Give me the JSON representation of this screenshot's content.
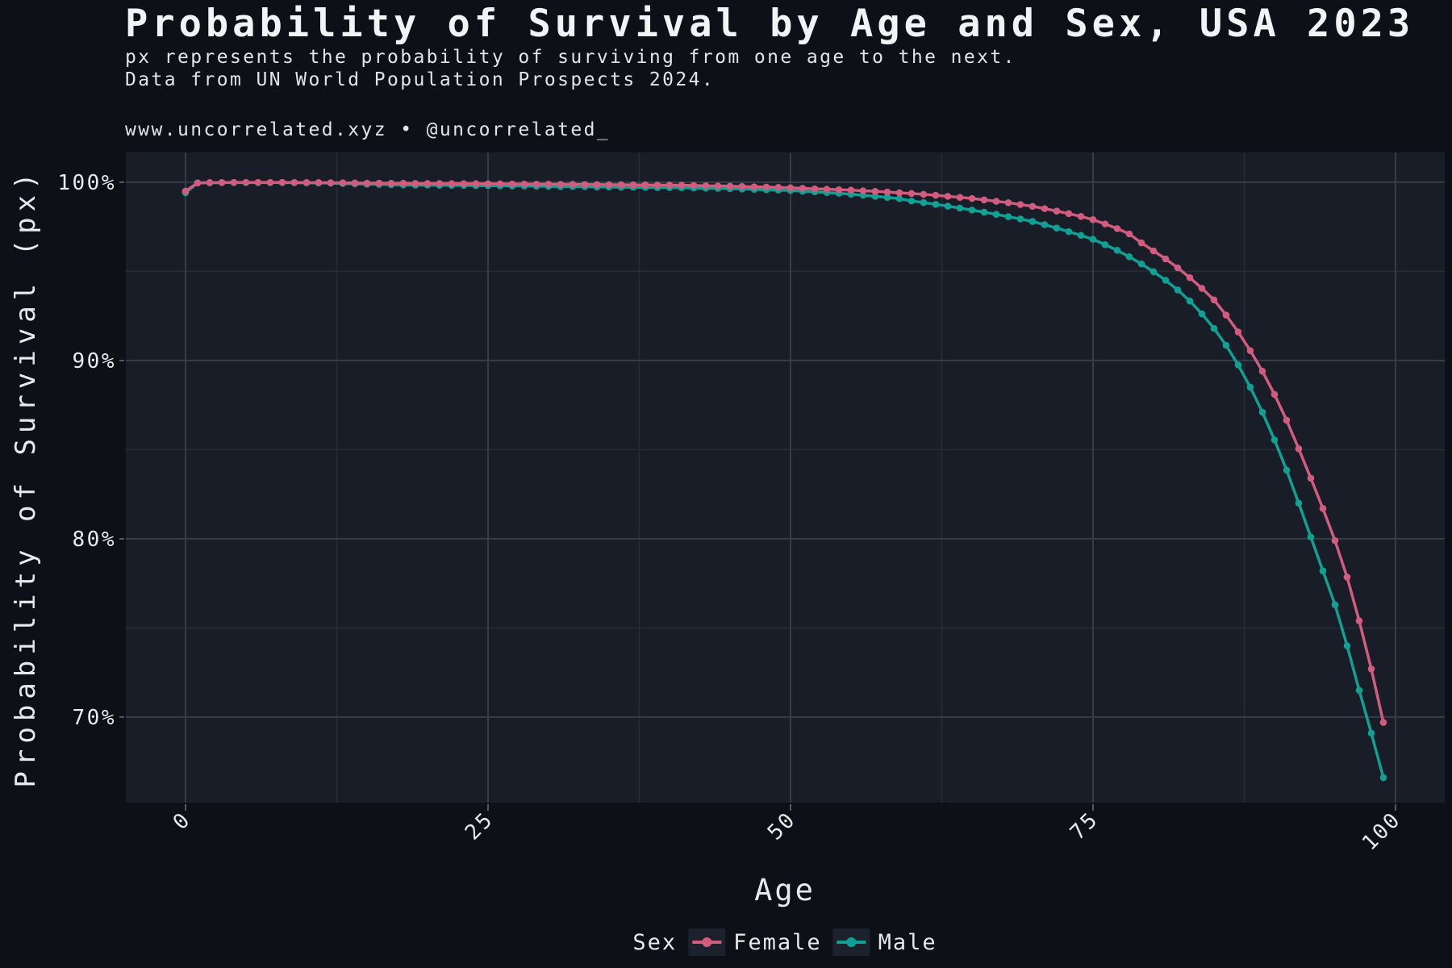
{
  "page": {
    "title": "Probability of Survival by Age and Sex, USA 2023",
    "subtitle_line1": "px represents the probability of surviving from one age to the next.",
    "subtitle_line2": "Data from UN World Population Prospects 2024.",
    "caption": "www.uncorrelated.xyz • @uncorrelated_"
  },
  "colors": {
    "background": "#0D1017",
    "panel": "#181D27",
    "grid_major": "#363C48",
    "grid_minor": "#272D38",
    "tick": "#555C66",
    "text": "#E7E9EB",
    "female": "#D25C7E",
    "male": "#10A094",
    "legend_key_bg": "#1C222D"
  },
  "chart_data": {
    "type": "line",
    "title": "Probability of Survival by Age and Sex, USA 2023",
    "subtitle": "px represents the probability of surviving from one age to the next. Data from UN World Population Prospects 2024.",
    "caption": "www.uncorrelated.xyz • @uncorrelated_",
    "xlabel": "Age",
    "ylabel": "Probability of Survival (px)",
    "legend_title": "Sex",
    "legend_position": "bottom",
    "grid": true,
    "xlim": [
      -4.93,
      104.07
    ],
    "ylim": [
      65.2,
      101.67
    ],
    "x_ticks": {
      "values": [
        0,
        25,
        50,
        75,
        100
      ],
      "labels": [
        "0",
        "25",
        "50",
        "75",
        "100"
      ]
    },
    "x_minor_ticks": [
      12.5,
      37.5,
      62.5,
      87.5
    ],
    "y_ticks": {
      "values": [
        100,
        90,
        80,
        70
      ],
      "labels": [
        "100%",
        "90%",
        "80%",
        "70%"
      ]
    },
    "y_minor_ticks": [
      95,
      85,
      75
    ],
    "x": [
      0,
      1,
      2,
      3,
      4,
      5,
      6,
      7,
      8,
      9,
      10,
      11,
      12,
      13,
      14,
      15,
      16,
      17,
      18,
      19,
      20,
      21,
      22,
      23,
      24,
      25,
      26,
      27,
      28,
      29,
      30,
      31,
      32,
      33,
      34,
      35,
      36,
      37,
      38,
      39,
      40,
      41,
      42,
      43,
      44,
      45,
      46,
      47,
      48,
      49,
      50,
      51,
      52,
      53,
      54,
      55,
      56,
      57,
      58,
      59,
      60,
      61,
      62,
      63,
      64,
      65,
      66,
      67,
      68,
      69,
      70,
      71,
      72,
      73,
      74,
      75,
      76,
      77,
      78,
      79,
      80,
      81,
      82,
      83,
      84,
      85,
      86,
      87,
      88,
      89,
      90,
      91,
      92,
      93,
      94,
      95,
      96,
      97,
      98,
      99
    ],
    "series": [
      {
        "name": "Female",
        "color": "#D25C7E",
        "values": [
          99.5,
          99.96,
          99.98,
          99.98,
          99.99,
          99.99,
          99.99,
          99.99,
          99.99,
          99.98,
          99.98,
          99.98,
          99.97,
          99.97,
          99.96,
          99.95,
          99.95,
          99.94,
          99.94,
          99.93,
          99.93,
          99.93,
          99.92,
          99.92,
          99.92,
          99.91,
          99.91,
          99.9,
          99.9,
          99.89,
          99.89,
          99.88,
          99.88,
          99.87,
          99.87,
          99.86,
          99.86,
          99.85,
          99.85,
          99.84,
          99.84,
          99.83,
          99.82,
          99.8,
          99.79,
          99.78,
          99.76,
          99.74,
          99.73,
          99.71,
          99.69,
          99.66,
          99.63,
          99.61,
          99.58,
          99.56,
          99.52,
          99.49,
          99.45,
          99.41,
          99.37,
          99.32,
          99.27,
          99.21,
          99.15,
          99.09,
          99.01,
          98.93,
          98.85,
          98.75,
          98.65,
          98.52,
          98.38,
          98.24,
          98.08,
          97.9,
          97.66,
          97.4,
          97.1,
          96.6,
          96.15,
          95.7,
          95.2,
          94.65,
          94.05,
          93.4,
          92.55,
          91.6,
          90.55,
          89.4,
          88.1,
          86.65,
          85.05,
          83.4,
          81.7,
          79.9,
          77.85,
          75.4,
          72.7,
          69.7
        ]
      },
      {
        "name": "Male",
        "color": "#10A094",
        "values": [
          99.41,
          99.96,
          99.97,
          99.98,
          99.98,
          99.98,
          99.98,
          99.98,
          99.98,
          99.98,
          99.97,
          99.96,
          99.95,
          99.93,
          99.91,
          99.89,
          99.88,
          99.86,
          99.85,
          99.84,
          99.84,
          99.83,
          99.82,
          99.82,
          99.81,
          99.81,
          99.8,
          99.79,
          99.79,
          99.78,
          99.77,
          99.76,
          99.76,
          99.75,
          99.74,
          99.73,
          99.72,
          99.72,
          99.71,
          99.7,
          99.7,
          99.69,
          99.68,
          99.67,
          99.66,
          99.64,
          99.62,
          99.6,
          99.58,
          99.56,
          99.54,
          99.5,
          99.46,
          99.42,
          99.38,
          99.33,
          99.27,
          99.21,
          99.15,
          99.08,
          98.95,
          98.86,
          98.76,
          98.66,
          98.55,
          98.44,
          98.32,
          98.2,
          98.07,
          97.94,
          97.8,
          97.62,
          97.43,
          97.23,
          97.02,
          96.8,
          96.5,
          96.18,
          95.82,
          95.42,
          94.98,
          94.5,
          93.96,
          93.34,
          92.62,
          91.8,
          90.85,
          89.75,
          88.5,
          87.1,
          85.55,
          83.85,
          82.0,
          80.1,
          78.2,
          76.3,
          74.0,
          71.5,
          69.1,
          66.6
        ]
      }
    ]
  }
}
